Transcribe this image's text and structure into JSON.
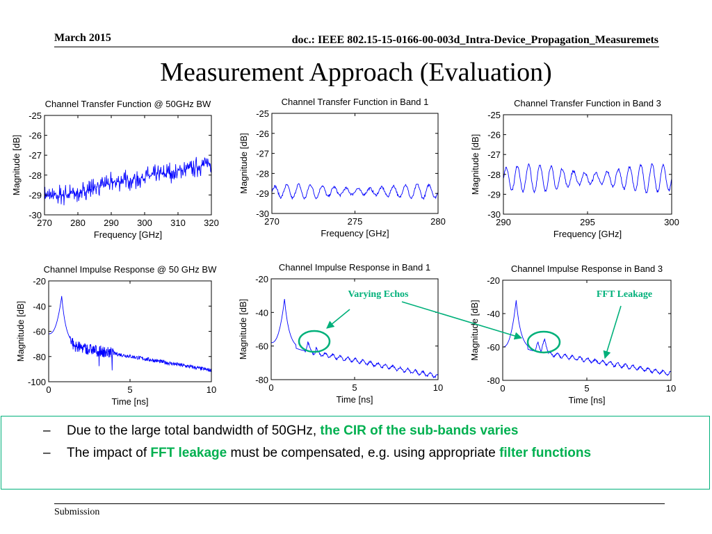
{
  "header": {
    "date": "March 2015",
    "doc": "doc.: IEEE 802.15-15-0166-00-003d_Intra-Device_Propagation_Measuremets"
  },
  "title": "Measurement Approach (Evaluation)",
  "annotations": {
    "varying_echos": "Varying Echos",
    "fft_leakage": "FFT Leakage",
    "color": "#00b07a"
  },
  "bullets": [
    {
      "dash": "–",
      "pre": "Due to the large total bandwidth of 50GHz, ",
      "hl1": "the CIR of the sub-bands varies",
      "mid": "",
      "hl2": "",
      "post": ""
    },
    {
      "dash": "–",
      "pre": "The impact of ",
      "hl1": "FFT leakage",
      "mid": " must be compensated, e.g. using appropriate ",
      "hl2": "filter functions",
      "post": ""
    }
  ],
  "footer": {
    "left": "Submission"
  },
  "chart_data": [
    {
      "type": "line",
      "title": "Channel Transfer Function @ 50GHz BW",
      "xlabel": "Frequency [GHz]",
      "ylabel": "Magnitude [dB]",
      "xlim": [
        270,
        320
      ],
      "ylim": [
        -30,
        -25
      ],
      "xticks": [
        270,
        280,
        290,
        300,
        310,
        320
      ],
      "yticks": [
        -25,
        -26,
        -27,
        -28,
        -29,
        -30
      ],
      "grid": false,
      "color": "#0000ff",
      "series": [
        {
          "style": "noisy-rising",
          "x": [
            270,
            280,
            290,
            300,
            310,
            320
          ],
          "y": [
            -29.1,
            -28.9,
            -28.4,
            -28.1,
            -27.8,
            -27.4
          ],
          "ripple": 0.6
        }
      ]
    },
    {
      "type": "line",
      "title": "Channel Transfer Function in Band 1",
      "xlabel": "Frequency [GHz]",
      "ylabel": "Magnitude [dB]",
      "xlim": [
        270,
        280
      ],
      "ylim": [
        -30,
        -25
      ],
      "xticks": [
        270,
        275,
        280
      ],
      "yticks": [
        -25,
        -26,
        -27,
        -28,
        -29,
        -30
      ],
      "grid": false,
      "color": "#0000ff",
      "series": [
        {
          "style": "oscillating",
          "mean": -28.9,
          "amplitude": 0.35,
          "cycles": 14
        }
      ]
    },
    {
      "type": "line",
      "title": "Channel Transfer Function in Band 3",
      "xlabel": "Frequency [GHz]",
      "ylabel": "Magnitude [dB]",
      "xlim": [
        290,
        300
      ],
      "ylim": [
        -30,
        -25
      ],
      "xticks": [
        290,
        295,
        300
      ],
      "yticks": [
        -25,
        -26,
        -27,
        -28,
        -29,
        -30
      ],
      "grid": false,
      "color": "#0000ff",
      "series": [
        {
          "style": "oscillating",
          "mean": -28.2,
          "amplitude": 0.7,
          "cycles": 15
        }
      ]
    },
    {
      "type": "line",
      "title": "Channel Impulse Response @ 50 GHz BW",
      "xlabel": "Time [ns]",
      "ylabel": "Magnitude [dB]",
      "xlim": [
        0,
        10
      ],
      "ylim": [
        -100,
        -20
      ],
      "xticks": [
        0,
        5,
        10
      ],
      "yticks": [
        -20,
        -40,
        -60,
        -80,
        -100
      ],
      "grid": false,
      "color": "#0000ff",
      "series": [
        {
          "style": "impulse",
          "peak_x": 0.8,
          "peak_y": -32,
          "start_y": -62,
          "floor_start": -72,
          "floor_end": -91,
          "noise": 3
        }
      ]
    },
    {
      "type": "line",
      "title": "Channel Impulse Response in Band 1",
      "xlabel": "Time [ns]",
      "ylabel": "Magnitude [dB]",
      "xlim": [
        0,
        10
      ],
      "ylim": [
        -80,
        -20
      ],
      "xticks": [
        0,
        5,
        10
      ],
      "yticks": [
        -20,
        -40,
        -60,
        -80
      ],
      "grid": false,
      "color": "#0000ff",
      "series": [
        {
          "style": "impulse-smooth",
          "peak_x": 0.8,
          "peak_y": -32,
          "start_y": -58,
          "echo_x": [
            2.2,
            2.7
          ],
          "echo_y": [
            -57,
            -61
          ],
          "floor_start": -62,
          "floor_end": -78
        }
      ]
    },
    {
      "type": "line",
      "title": "Channel Impulse Response in Band 3",
      "xlabel": "Time [ns]",
      "ylabel": "Magnitude [dB]",
      "xlim": [
        0,
        10
      ],
      "ylim": [
        -80,
        -20
      ],
      "xticks": [
        0,
        5,
        10
      ],
      "yticks": [
        -20,
        -40,
        -60,
        -80
      ],
      "grid": false,
      "color": "#0000ff",
      "series": [
        {
          "style": "impulse-smooth",
          "peak_x": 0.8,
          "peak_y": -32,
          "start_y": -60,
          "echo_x": [
            2.1,
            2.5
          ],
          "echo_y": [
            -56,
            -55
          ],
          "floor_start": -62,
          "floor_end": -76
        }
      ]
    }
  ]
}
